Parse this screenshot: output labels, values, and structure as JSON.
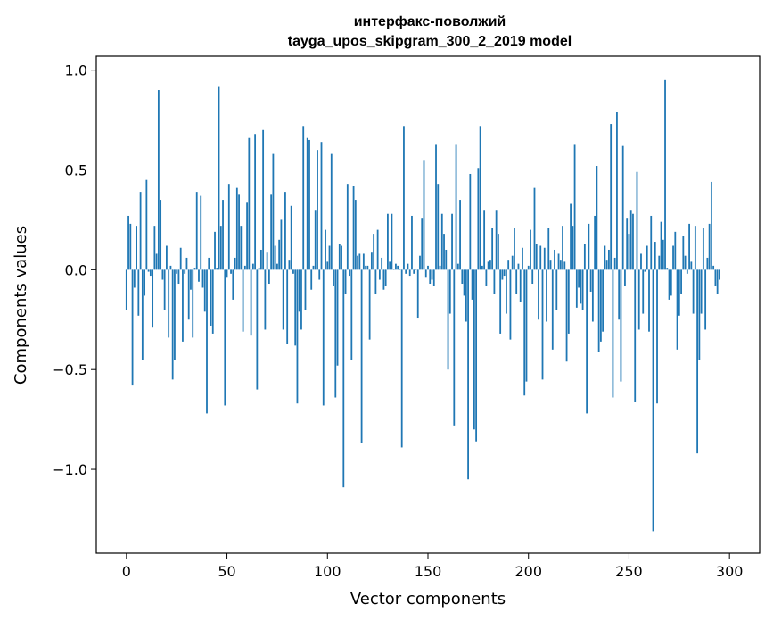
{
  "chart_data": {
    "type": "bar",
    "title": [
      "интерфакс-поволжий",
      "tayga_upos_skipgram_300_2_2019 model"
    ],
    "xlabel": "Vector components",
    "ylabel": "Components values",
    "xlim": [
      -15,
      315
    ],
    "ylim": [
      -1.42,
      1.07
    ],
    "xticks": [
      0,
      50,
      100,
      150,
      200,
      250,
      300
    ],
    "xtick_labels": [
      "0",
      "50",
      "100",
      "150",
      "200",
      "250",
      "300"
    ],
    "yticks": [
      -1.0,
      -0.5,
      0.0,
      0.5,
      1.0
    ],
    "ytick_labels": [
      "−1.0",
      "−0.5",
      "0.0",
      "0.5",
      "1.0"
    ],
    "grid": false,
    "bar_color": "#1f77b4",
    "series": [
      {
        "values": [
          -0.2,
          0.27,
          0.23,
          -0.58,
          -0.09,
          0.22,
          -0.23,
          0.39,
          -0.45,
          -0.13,
          0.45,
          -0.01,
          -0.03,
          -0.29,
          0.22,
          0.08,
          0.9,
          0.35,
          -0.05,
          -0.2,
          0.12,
          -0.34,
          0.02,
          -0.55,
          -0.45,
          -0.02,
          -0.07,
          0.11,
          -0.36,
          -0.02,
          0.06,
          -0.25,
          -0.1,
          -0.34,
          0.01,
          0.39,
          -0.06,
          0.37,
          -0.09,
          -0.21,
          -0.72,
          0.06,
          -0.28,
          -0.32,
          0.19,
          0.01,
          0.92,
          0.22,
          0.35,
          -0.68,
          -0.04,
          0.43,
          -0.02,
          -0.15,
          0.06,
          0.41,
          0.38,
          0.22,
          -0.31,
          0.02,
          0.34,
          0.66,
          -0.33,
          0.03,
          0.68,
          -0.6,
          0.01,
          0.1,
          0.7,
          -0.3,
          0.09,
          -0.07,
          0.38,
          0.58,
          0.12,
          0.03,
          0.15,
          0.25,
          -0.3,
          0.39,
          -0.37,
          0.05,
          0.32,
          -0.02,
          -0.38,
          -0.67,
          -0.21,
          -0.3,
          0.72,
          -0.2,
          0.66,
          0.65,
          -0.1,
          0.02,
          0.3,
          0.6,
          -0.05,
          0.64,
          -0.68,
          0.2,
          0.04,
          0.12,
          0.58,
          -0.08,
          -0.64,
          -0.48,
          0.13,
          0.12,
          -1.09,
          -0.12,
          0.43,
          -0.03,
          -0.45,
          0.42,
          0.35,
          0.07,
          0.08,
          -0.87,
          0.08,
          0.02,
          0.02,
          -0.35,
          0.09,
          0.18,
          -0.12,
          0.2,
          -0.05,
          0.06,
          -0.1,
          -0.08,
          0.28,
          0.04,
          0.28,
          0.0,
          0.03,
          0.02,
          0.0,
          -0.89,
          0.72,
          -0.02,
          0.03,
          -0.03,
          0.27,
          -0.02,
          0.0,
          -0.24,
          0.07,
          0.26,
          0.55,
          -0.04,
          0.02,
          -0.07,
          -0.05,
          -0.08,
          0.63,
          0.43,
          0.02,
          0.28,
          0.18,
          0.1,
          -0.5,
          -0.22,
          0.28,
          -0.78,
          0.63,
          0.03,
          0.35,
          -0.07,
          -0.13,
          -0.26,
          -1.05,
          0.48,
          -0.15,
          -0.8,
          -0.86,
          0.51,
          0.72,
          0.02,
          0.3,
          -0.08,
          0.04,
          0.05,
          0.21,
          -0.12,
          0.3,
          0.18,
          -0.32,
          -0.05,
          -0.03,
          -0.22,
          0.05,
          -0.35,
          0.07,
          0.21,
          -0.12,
          0.03,
          -0.16,
          0.11,
          -0.63,
          -0.56,
          0.02,
          0.2,
          -0.07,
          0.41,
          0.13,
          -0.25,
          0.12,
          -0.55,
          0.11,
          -0.26,
          0.21,
          0.05,
          -0.4,
          0.1,
          -0.2,
          0.08,
          0.05,
          0.22,
          0.04,
          -0.46,
          -0.32,
          0.33,
          0.22,
          0.63,
          -0.19,
          -0.09,
          -0.17,
          -0.2,
          0.13,
          -0.72,
          0.23,
          -0.11,
          -0.26,
          0.27,
          0.52,
          -0.41,
          -0.36,
          -0.31,
          0.12,
          0.05,
          0.1,
          0.73,
          -0.64,
          0.06,
          0.79,
          -0.25,
          -0.56,
          0.62,
          -0.08,
          0.26,
          0.18,
          0.3,
          0.28,
          -0.66,
          0.49,
          -0.3,
          0.08,
          -0.22,
          -0.01,
          0.12,
          -0.31,
          0.27,
          -1.31,
          0.14,
          -0.67,
          0.07,
          0.24,
          0.15,
          0.95,
          0.01,
          -0.15,
          -0.13,
          0.12,
          0.19,
          -0.4,
          -0.23,
          -0.12,
          0.17,
          0.07,
          -0.02,
          0.23,
          0.04,
          -0.22,
          0.22,
          -0.92,
          -0.45,
          -0.22,
          0.21,
          -0.3,
          0.06,
          0.23,
          0.44,
          0.02,
          -0.08,
          -0.12,
          -0.05
        ]
      }
    ]
  }
}
